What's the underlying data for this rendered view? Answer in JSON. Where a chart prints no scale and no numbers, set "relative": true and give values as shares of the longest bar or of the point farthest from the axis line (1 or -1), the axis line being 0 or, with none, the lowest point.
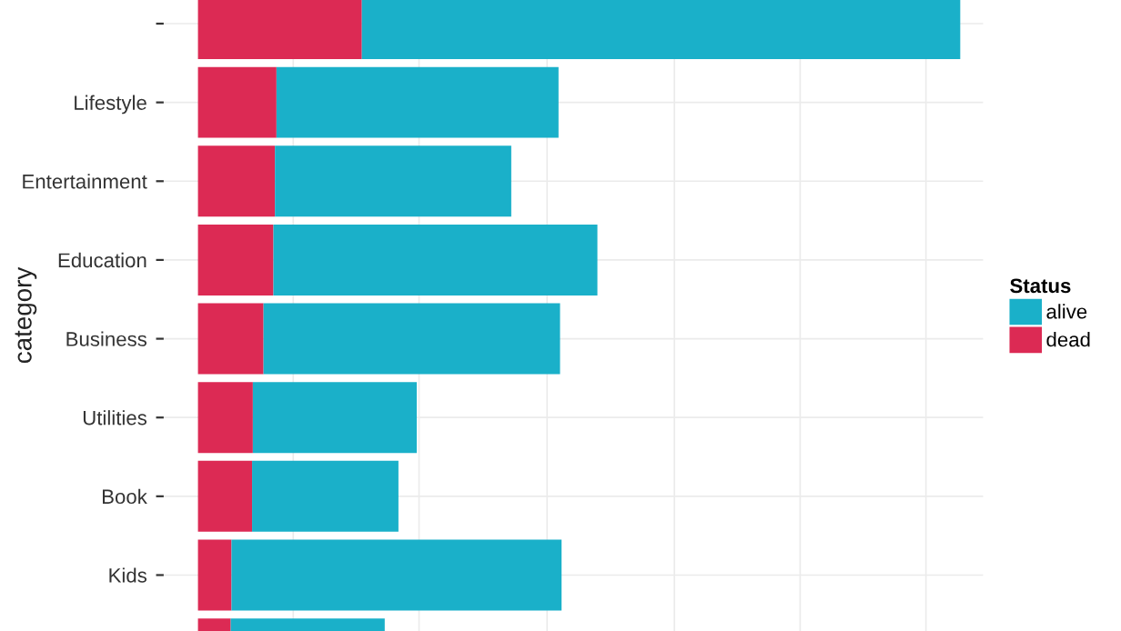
{
  "chart_data": {
    "type": "bar",
    "orientation": "horizontal",
    "stacked": true,
    "relative": true,
    "ylabel": "category",
    "legend_title": "Status",
    "legend": "right",
    "grid": true,
    "categories": [
      null,
      "Lifestyle",
      "Entertainment",
      "Education",
      "Business",
      "Utilities",
      "Book",
      "Kids",
      null
    ],
    "series": [
      {
        "name": "dead",
        "color": "#dc2a54",
        "values": [
          0.215,
          0.103,
          0.101,
          0.099,
          0.086,
          0.072,
          0.071,
          0.044,
          0.043
        ]
      },
      {
        "name": "alive",
        "color": "#1ab0c9",
        "values": [
          0.785,
          0.37,
          0.31,
          0.425,
          0.389,
          0.215,
          0.192,
          0.433,
          0.202
        ]
      }
    ]
  }
}
